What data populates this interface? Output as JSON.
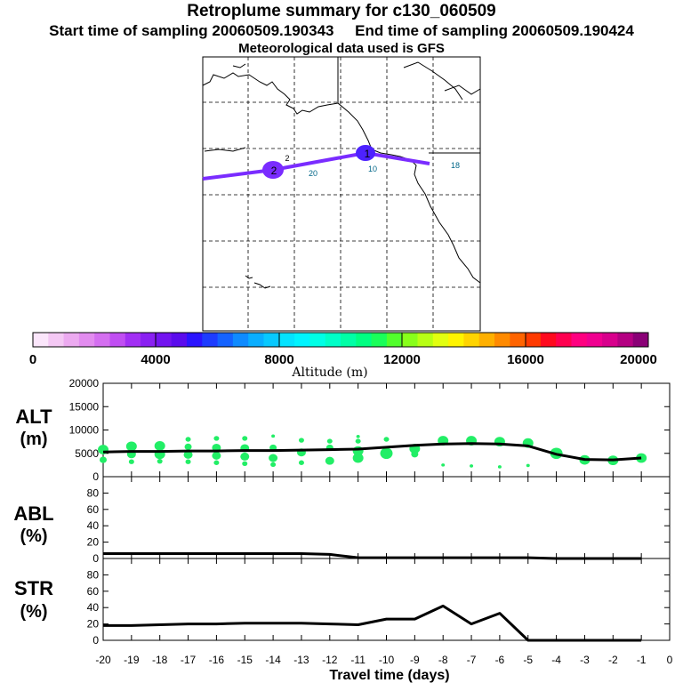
{
  "header": {
    "title": "Retroplume summary for c130_060509",
    "start_label": "Start time of sampling 20060509.190343",
    "end_label": "End time of sampling 20060509.190424",
    "met_label": "Meteorological data used is GFS"
  },
  "map": {
    "plume_color": "#7a2cff",
    "day_markers": [
      {
        "label": "1",
        "color": "#4d22ff"
      },
      {
        "label": "2",
        "color": "#7a2cff"
      }
    ],
    "track_labels": [
      "2",
      "20",
      "10",
      "18"
    ]
  },
  "colorbar": {
    "colors": [
      "#fbe6fb",
      "#f4c8f4",
      "#ecaaf0",
      "#e28cef",
      "#d46ff0",
      "#c04ef2",
      "#a22ff4",
      "#8a20f2",
      "#7314f0",
      "#5b0ced",
      "#2b14ff",
      "#1d3cff",
      "#1463ff",
      "#0f8bff",
      "#0aaeff",
      "#08c9ff",
      "#04e3ff",
      "#00f4ff",
      "#00ffe6",
      "#00ffc8",
      "#00ffa6",
      "#00ff82",
      "#1aff5a",
      "#52ff2c",
      "#88ff1a",
      "#b8ff14",
      "#e2ff10",
      "#fff400",
      "#ffd400",
      "#ffb000",
      "#ff8a00",
      "#ff6400",
      "#ff3a00",
      "#ff0a1e",
      "#ff0050",
      "#ff0080",
      "#f00090",
      "#d8008c",
      "#b40082",
      "#8a0076"
    ],
    "ticks": [
      "0",
      "4000",
      "8000",
      "12000",
      "16000",
      "20000"
    ],
    "label": "Altitude  (m)"
  },
  "chart_data": [
    {
      "type": "line",
      "panel": "ALT",
      "title": "ALT",
      "ylabel": "(m)",
      "ylim": [
        0,
        20000
      ],
      "yticks": [
        "0",
        "5000",
        "10000",
        "15000",
        "20000"
      ],
      "series": [
        {
          "name": "ALT",
          "x": [
            -20,
            -19,
            -18,
            -17,
            -16,
            -15,
            -14,
            -13,
            -12,
            -11,
            -10,
            -9,
            -8,
            -7,
            -6,
            -5,
            -4,
            -3,
            -2,
            -1
          ],
          "values": [
            5300,
            5400,
            5400,
            5500,
            5500,
            5600,
            5600,
            5700,
            5800,
            5900,
            6300,
            6700,
            7000,
            7100,
            7000,
            6600,
            4800,
            3700,
            3600,
            4000
          ]
        }
      ],
      "scatter_color": "#22ee66",
      "scatter": [
        {
          "x": -20,
          "y": 5800,
          "r": 6
        },
        {
          "x": -20,
          "y": 3600,
          "r": 4
        },
        {
          "x": -19,
          "y": 6500,
          "r": 6
        },
        {
          "x": -19,
          "y": 4800,
          "r": 5
        },
        {
          "x": -19,
          "y": 3200,
          "r": 3
        },
        {
          "x": -18,
          "y": 6600,
          "r": 6
        },
        {
          "x": -18,
          "y": 4800,
          "r": 6
        },
        {
          "x": -18,
          "y": 3300,
          "r": 3
        },
        {
          "x": -17,
          "y": 8000,
          "r": 3
        },
        {
          "x": -17,
          "y": 6400,
          "r": 4
        },
        {
          "x": -17,
          "y": 4700,
          "r": 5
        },
        {
          "x": -17,
          "y": 3200,
          "r": 3
        },
        {
          "x": -16,
          "y": 8200,
          "r": 3
        },
        {
          "x": -16,
          "y": 6200,
          "r": 5
        },
        {
          "x": -16,
          "y": 4500,
          "r": 5
        },
        {
          "x": -16,
          "y": 3000,
          "r": 3
        },
        {
          "x": -15,
          "y": 8200,
          "r": 3
        },
        {
          "x": -15,
          "y": 6100,
          "r": 5
        },
        {
          "x": -15,
          "y": 4300,
          "r": 5
        },
        {
          "x": -15,
          "y": 2800,
          "r": 3
        },
        {
          "x": -14,
          "y": 8700,
          "r": 2
        },
        {
          "x": -14,
          "y": 6200,
          "r": 4
        },
        {
          "x": -14,
          "y": 4000,
          "r": 5
        },
        {
          "x": -14,
          "y": 2600,
          "r": 3
        },
        {
          "x": -13,
          "y": 7800,
          "r": 3
        },
        {
          "x": -13,
          "y": 5200,
          "r": 5
        },
        {
          "x": -13,
          "y": 3000,
          "r": 3
        },
        {
          "x": -12,
          "y": 7600,
          "r": 3
        },
        {
          "x": -12,
          "y": 6200,
          "r": 4
        },
        {
          "x": -12,
          "y": 3400,
          "r": 5
        },
        {
          "x": -11,
          "y": 8600,
          "r": 2
        },
        {
          "x": -11,
          "y": 7600,
          "r": 3
        },
        {
          "x": -11,
          "y": 5500,
          "r": 6
        },
        {
          "x": -11,
          "y": 4000,
          "r": 6
        },
        {
          "x": -10,
          "y": 8000,
          "r": 3
        },
        {
          "x": -10,
          "y": 5000,
          "r": 7
        },
        {
          "x": -9,
          "y": 6000,
          "r": 6
        },
        {
          "x": -9,
          "y": 4800,
          "r": 4
        },
        {
          "x": -8,
          "y": 7700,
          "r": 6
        },
        {
          "x": -8,
          "y": 2500,
          "r": 2
        },
        {
          "x": -7,
          "y": 7700,
          "r": 6
        },
        {
          "x": -7,
          "y": 2300,
          "r": 2
        },
        {
          "x": -6,
          "y": 7500,
          "r": 6
        },
        {
          "x": -6,
          "y": 2100,
          "r": 2
        },
        {
          "x": -5,
          "y": 7200,
          "r": 6
        },
        {
          "x": -5,
          "y": 2400,
          "r": 2
        },
        {
          "x": -4,
          "y": 5000,
          "r": 7
        },
        {
          "x": -3,
          "y": 3600,
          "r": 6
        },
        {
          "x": -2,
          "y": 3500,
          "r": 6
        },
        {
          "x": -1,
          "y": 4000,
          "r": 6
        }
      ]
    },
    {
      "type": "line",
      "panel": "ABL",
      "title": "ABL",
      "ylabel": "(%)",
      "ylim": [
        0,
        100
      ],
      "yticks": [
        "0",
        "20",
        "40",
        "60",
        "80"
      ],
      "series": [
        {
          "name": "ABL",
          "x": [
            -20,
            -19,
            -18,
            -17,
            -16,
            -15,
            -14,
            -13,
            -12,
            -11,
            -10,
            -9,
            -8,
            -7,
            -6,
            -5,
            -4,
            -3,
            -2,
            -1
          ],
          "values": [
            6,
            6,
            6,
            6,
            6,
            6,
            6,
            6,
            5,
            1,
            1,
            1,
            1,
            1,
            1,
            1,
            0,
            0,
            0,
            0
          ]
        }
      ]
    },
    {
      "type": "line",
      "panel": "STR",
      "title": "STR",
      "ylabel": "(%)",
      "ylim": [
        0,
        100
      ],
      "yticks": [
        "0",
        "20",
        "40",
        "60",
        "80"
      ],
      "xlabel": "Travel time (days)",
      "xlim": [
        -20,
        0
      ],
      "xticks": [
        "-20",
        "-19",
        "-18",
        "-17",
        "-16",
        "-15",
        "-14",
        "-13",
        "-12",
        "-11",
        "-10",
        "-9",
        "-8",
        "-7",
        "-6",
        "-5",
        "-4",
        "-3",
        "-2",
        "-1",
        "0"
      ],
      "series": [
        {
          "name": "STR",
          "x": [
            -20,
            -19,
            -18,
            -17,
            -16,
            -15,
            -14,
            -13,
            -12,
            -11,
            -10,
            -9,
            -8,
            -7,
            -6,
            -5,
            -4,
            -3,
            -2,
            -1
          ],
          "values": [
            18,
            18,
            19,
            20,
            20,
            21,
            21,
            21,
            20,
            19,
            26,
            26,
            42,
            20,
            33,
            0,
            0,
            0,
            0,
            0
          ]
        }
      ]
    }
  ]
}
